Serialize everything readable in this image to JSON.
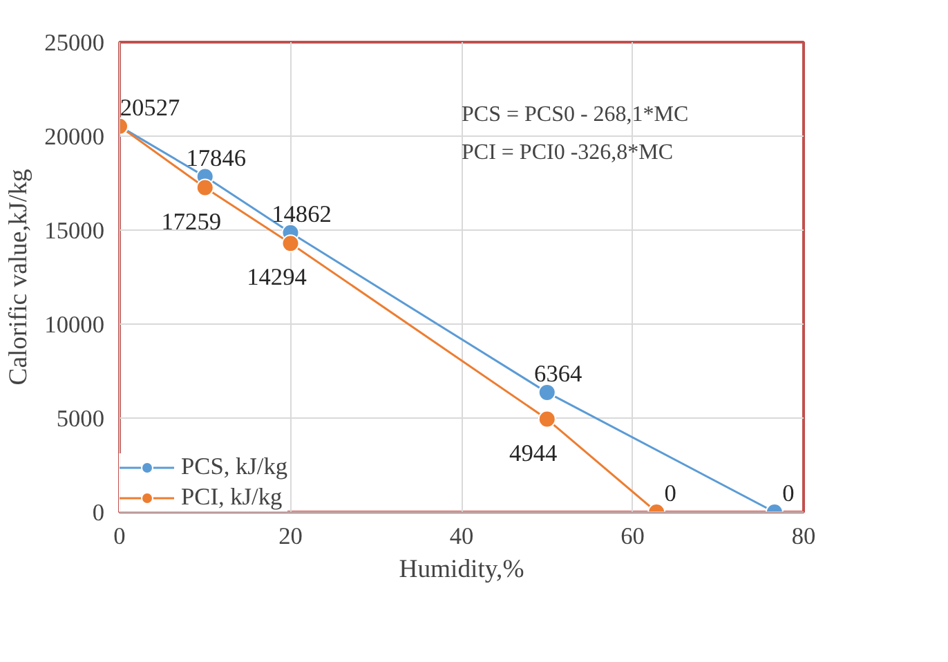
{
  "chart_data": {
    "type": "line",
    "xlabel": "Humidity,%",
    "ylabel": "Calorific value,kJ/kg",
    "annotations": [
      "PCS = PCS0 - 268,1*MC",
      "PCI  = PCI0 -326,8*MC"
    ],
    "series": [
      {
        "name": "PCS, kJ/kg",
        "color": "#5b9bd5",
        "x": [
          0,
          10,
          20,
          50,
          76.6
        ],
        "values": [
          20527,
          17846,
          14862,
          6364,
          0
        ],
        "value_labels": [
          "20527",
          "17846",
          "14862",
          "6364",
          "0"
        ]
      },
      {
        "name": "PCI, kJ/kg",
        "color": "#ed7d31",
        "x": [
          0,
          10,
          20,
          50,
          62.8
        ],
        "values": [
          20527,
          17259,
          14294,
          4944,
          0
        ],
        "value_labels": [
          null,
          "17259",
          "14294",
          "4944",
          "0"
        ]
      }
    ],
    "xlim": [
      0,
      80
    ],
    "xticks": [
      0,
      20,
      40,
      60,
      80
    ],
    "ylim": [
      0,
      25000
    ],
    "yticks": [
      0,
      5000,
      10000,
      15000,
      20000,
      25000
    ],
    "grid": true,
    "legend": "bottom left",
    "marker": "circle",
    "line_style": "solid"
  }
}
